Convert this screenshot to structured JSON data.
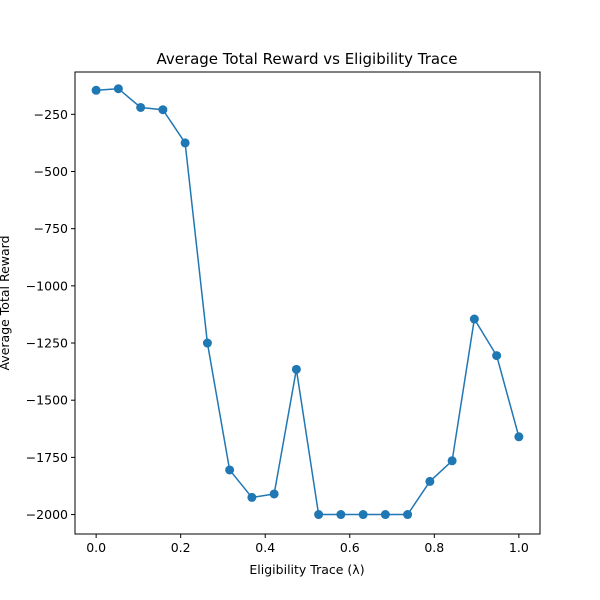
{
  "chart_data": {
    "type": "line",
    "title": "Average Total Reward vs Eligibility Trace",
    "xlabel": "Eligibility Trace (λ)",
    "ylabel": "Average Total Reward",
    "xlim": [
      -0.05,
      1.05
    ],
    "ylim": [
      -2085,
      -65
    ],
    "xticks": [
      0.0,
      0.2,
      0.4,
      0.6,
      0.8,
      1.0
    ],
    "xtick_labels": [
      "0.0",
      "0.2",
      "0.4",
      "0.6",
      "0.8",
      "1.0"
    ],
    "yticks": [
      -250,
      -500,
      -750,
      -1000,
      -1250,
      -1500,
      -1750,
      -2000
    ],
    "ytick_labels": [
      "−250",
      "−500",
      "−750",
      "−1000",
      "−1250",
      "−1500",
      "−1750",
      "−2000"
    ],
    "grid": false,
    "series": [
      {
        "color": "#1f77b4",
        "marker": "circle",
        "x": [
          0.0,
          0.0526,
          0.1053,
          0.1579,
          0.2105,
          0.2632,
          0.3158,
          0.3684,
          0.4211,
          0.4737,
          0.5263,
          0.5789,
          0.6316,
          0.6842,
          0.7368,
          0.7895,
          0.8421,
          0.8947,
          0.9474,
          1.0
        ],
        "y": [
          -145,
          -138,
          -220,
          -230,
          -375,
          -1250,
          -1805,
          -1925,
          -1910,
          -1365,
          -2000,
          -2000,
          -2000,
          -2000,
          -2000,
          -1855,
          -1765,
          -1145,
          -1305,
          -1660
        ]
      }
    ]
  }
}
